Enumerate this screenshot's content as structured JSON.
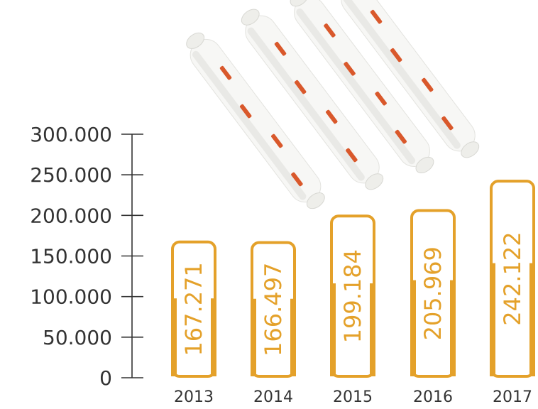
{
  "chart_data": {
    "type": "bar",
    "categories": [
      "2013",
      "2014",
      "2015",
      "2016",
      "2017"
    ],
    "values": [
      167271,
      166497,
      199184,
      205969,
      242122
    ],
    "value_labels": [
      "167.271",
      "166.497",
      "199.184",
      "205.969",
      "242.122"
    ],
    "yticks": [
      0,
      50000,
      100000,
      150000,
      200000,
      250000,
      300000
    ],
    "ytick_labels": [
      "0",
      "50.000",
      "100.000",
      "150.000",
      "200.000",
      "250.000",
      "300.000"
    ],
    "ylim": [
      0,
      300000
    ],
    "bar_color": "#e4a12a",
    "illustration": "sausage-rolls"
  }
}
